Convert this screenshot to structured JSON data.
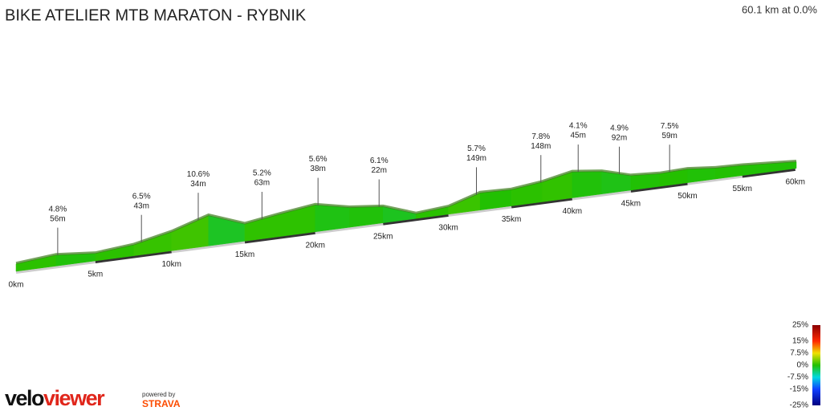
{
  "chart_data": {
    "type": "elevation-profile",
    "title": "BIKE ATELIER MTB MARATON - RYBNIK",
    "status": "60.1 km at 0.0%",
    "distance": [
      0,
      2.5,
      5,
      7.5,
      10,
      12.5,
      15,
      17.5,
      20,
      22.5,
      25,
      27.5,
      30,
      32.5,
      35,
      37.5,
      40,
      42.5,
      45,
      47.5,
      50,
      52.5,
      55,
      57.5,
      60.1
    ],
    "elevation": [
      238,
      246,
      238,
      246,
      264,
      290,
      260,
      272,
      282,
      266,
      258,
      232,
      238,
      260,
      258,
      266,
      280,
      272,
      254,
      250,
      252,
      246,
      244,
      240,
      236
    ],
    "xlim": [
      0,
      60.1
    ],
    "xticks": [
      {
        "value": 0,
        "label": "0km"
      },
      {
        "value": 5,
        "label": "5km"
      },
      {
        "value": 10,
        "label": "10km"
      },
      {
        "value": 15,
        "label": "15km"
      },
      {
        "value": 20,
        "label": "20km"
      },
      {
        "value": 25,
        "label": "25km"
      },
      {
        "value": 30,
        "label": "30km"
      },
      {
        "value": 35,
        "label": "35km"
      },
      {
        "value": 40,
        "label": "40km"
      },
      {
        "value": 45,
        "label": "45km"
      },
      {
        "value": 50,
        "label": "50km"
      },
      {
        "value": 55,
        "label": "55km"
      },
      {
        "value": 60,
        "label": "60km"
      }
    ],
    "climbs": [
      {
        "km": 2.6,
        "grade": "4.8%",
        "length": "56m"
      },
      {
        "km": 8,
        "grade": "6.5%",
        "length": "43m"
      },
      {
        "km": 11.8,
        "grade": "10.6%",
        "length": "34m"
      },
      {
        "km": 16.2,
        "grade": "5.2%",
        "length": "63m"
      },
      {
        "km": 20.2,
        "grade": "5.6%",
        "length": "38m"
      },
      {
        "km": 24.7,
        "grade": "6.1%",
        "length": "22m"
      },
      {
        "km": 32.2,
        "grade": "5.7%",
        "length": "149m"
      },
      {
        "km": 37.4,
        "grade": "7.8%",
        "length": "148m"
      },
      {
        "km": 40.5,
        "grade": "4.1%",
        "length": "45m"
      },
      {
        "km": 44,
        "grade": "4.9%",
        "length": "92m"
      },
      {
        "km": 48.4,
        "grade": "7.5%",
        "length": "59m"
      }
    ],
    "color_scale": {
      "ticks": [
        {
          "value": 25,
          "label": "25%"
        },
        {
          "value": 15,
          "label": "15%"
        },
        {
          "value": 7.5,
          "label": "7.5%"
        },
        {
          "value": 0,
          "label": "0%"
        },
        {
          "value": -7.5,
          "label": "-7.5%"
        },
        {
          "value": -15,
          "label": "-15%"
        },
        {
          "value": -25,
          "label": "-25%"
        }
      ],
      "colors": [
        "#8b0000",
        "#ff2a00",
        "#f0e000",
        "#22c000",
        "#00d8e0",
        "#1040ff",
        "#000080"
      ]
    },
    "branding": {
      "logo_a": "velo",
      "logo_b": "viewer",
      "powered": "powered by",
      "partner": "STRAVA"
    }
  }
}
